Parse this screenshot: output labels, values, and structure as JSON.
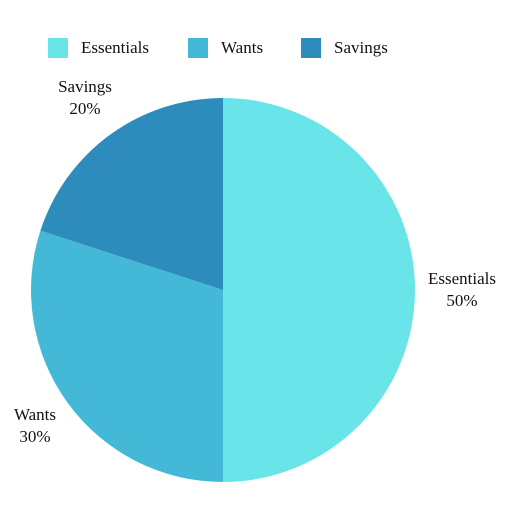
{
  "chart_data": {
    "type": "pie",
    "title": "",
    "legend_position": "top",
    "categories": [
      "Essentials",
      "Wants",
      "Savings"
    ],
    "values": [
      50,
      30,
      20
    ],
    "value_labels": [
      "50%",
      "30%",
      "20%"
    ],
    "colors": [
      "#69E4E8",
      "#44B9D7",
      "#2E8CBC"
    ],
    "start_angle_deg": 0,
    "direction": "clockwise"
  }
}
